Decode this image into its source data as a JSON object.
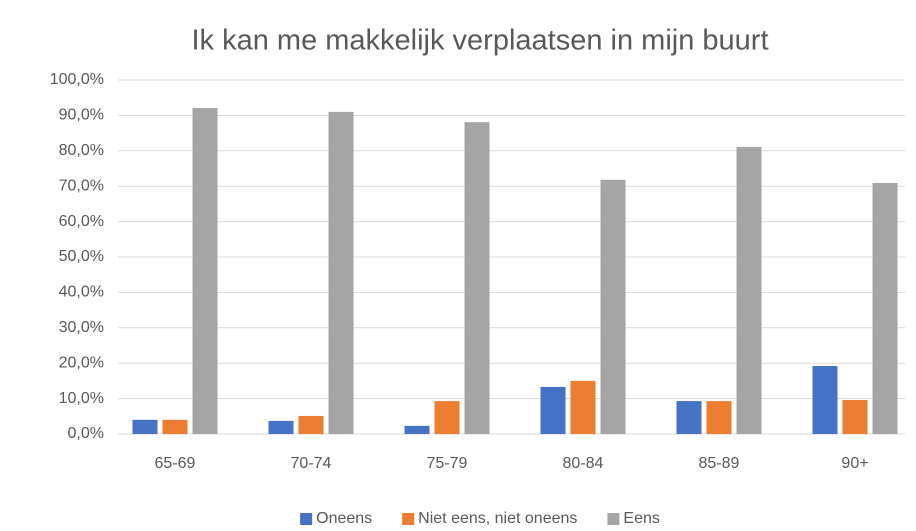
{
  "chart_data": {
    "type": "bar",
    "title": "Ik kan me makkelijk verplaatsen in mijn buurt",
    "categories": [
      "65-69",
      "70-74",
      "75-79",
      "80-84",
      "85-89",
      "90+"
    ],
    "series": [
      {
        "name": "Oneens",
        "color": "#4472c4",
        "values": [
          4.0,
          3.7,
          2.3,
          13.3,
          9.3,
          19.2
        ]
      },
      {
        "name": "Niet eens, niet oneens",
        "color": "#ed7d31",
        "values": [
          4.0,
          5.1,
          9.3,
          15.0,
          9.3,
          9.6
        ]
      },
      {
        "name": "Eens",
        "color": "#a5a5a5",
        "values": [
          92.1,
          91.0,
          88.1,
          71.8,
          81.1,
          70.9
        ]
      }
    ],
    "ylim": [
      0,
      100
    ],
    "yticks": [
      {
        "value": 0,
        "label": "0,0%"
      },
      {
        "value": 10,
        "label": "10,0%"
      },
      {
        "value": 20,
        "label": "20,0%"
      },
      {
        "value": 30,
        "label": "30,0%"
      },
      {
        "value": 40,
        "label": "40,0%"
      },
      {
        "value": 50,
        "label": "50,0%"
      },
      {
        "value": 60,
        "label": "60,0%"
      },
      {
        "value": 70,
        "label": "70,0%"
      },
      {
        "value": 80,
        "label": "80,0%"
      },
      {
        "value": 90,
        "label": "90,0%"
      },
      {
        "value": 100,
        "label": "100,0%"
      }
    ],
    "grid": true,
    "legend": "bottom"
  }
}
